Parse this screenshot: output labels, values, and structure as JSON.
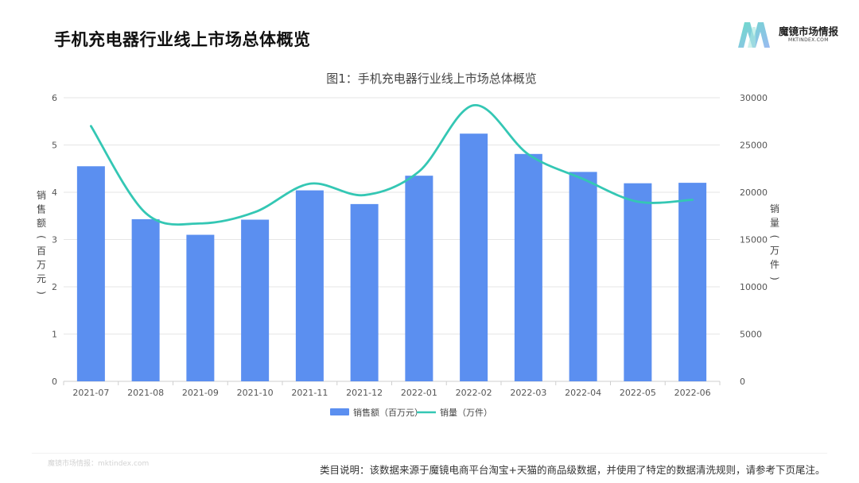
{
  "page": {
    "title": "手机充电器行业线上市场总体概览",
    "watermark": "魔镜市场情报：mktindex.com",
    "footnote": "类目说明：该数据来源于魔镜电商平台淘宝+天猫的商品级数据，并使用了特定的数据清洗规则，请参考下页尾注。"
  },
  "logo": {
    "name": "魔镜市场情报",
    "sub": "MKTINDEX.COM",
    "colors": [
      "#5cd6c4",
      "#8fb3f0"
    ]
  },
  "chart_data": {
    "type": "bar",
    "title": "图1：手机充电器行业线上市场总体概览",
    "categories": [
      "2021-07",
      "2021-08",
      "2021-09",
      "2021-10",
      "2021-11",
      "2021-12",
      "2022-01",
      "2022-02",
      "2022-03",
      "2022-04",
      "2022-05",
      "2022-06"
    ],
    "ylabel_left": "销售额（百万元）",
    "ylabel_right": "销量（万件）",
    "ylim_left": [
      0,
      6
    ],
    "ylim_right": [
      0,
      30000
    ],
    "yticks_left": [
      "0",
      "1",
      "2",
      "3",
      "4",
      "5",
      "6"
    ],
    "yticks_right": [
      "0",
      "5000",
      "10000",
      "15000",
      "20000",
      "25000",
      "30000"
    ],
    "grid": true,
    "legend_position": "bottom",
    "series": [
      {
        "name": "销售额（百万元）",
        "type": "bar",
        "axis": "left",
        "color": "#5b8ff0",
        "values": [
          4.55,
          3.43,
          3.1,
          3.42,
          4.04,
          3.75,
          4.35,
          5.24,
          4.81,
          4.43,
          4.19,
          4.2
        ]
      },
      {
        "name": "销量（万件）",
        "type": "line",
        "axis": "right",
        "color": "#34c7b4",
        "values": [
          27000,
          17800,
          16700,
          17900,
          20900,
          19700,
          22200,
          29200,
          24000,
          21400,
          19000,
          19200
        ]
      }
    ]
  }
}
